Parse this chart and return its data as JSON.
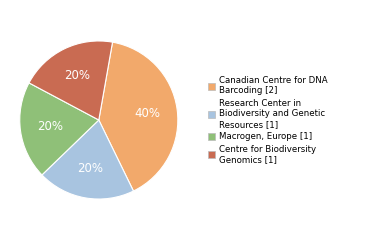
{
  "legend_labels": [
    "Canadian Centre for DNA\nBarcoding [2]",
    "Research Center in\nBiodiversity and Genetic\nResources [1]",
    "Macrogen, Europe [1]",
    "Centre for Biodiversity\nGenomics [1]"
  ],
  "values": [
    40,
    20,
    20,
    20
  ],
  "colors": [
    "#f2a96b",
    "#a8c4e0",
    "#8fc078",
    "#c96b52"
  ],
  "pct_labels": [
    "40%",
    "20%",
    "20%",
    "20%"
  ],
  "startangle": 80,
  "background_color": "#ffffff",
  "text_color": "#ffffff",
  "fontsize": 8.5
}
